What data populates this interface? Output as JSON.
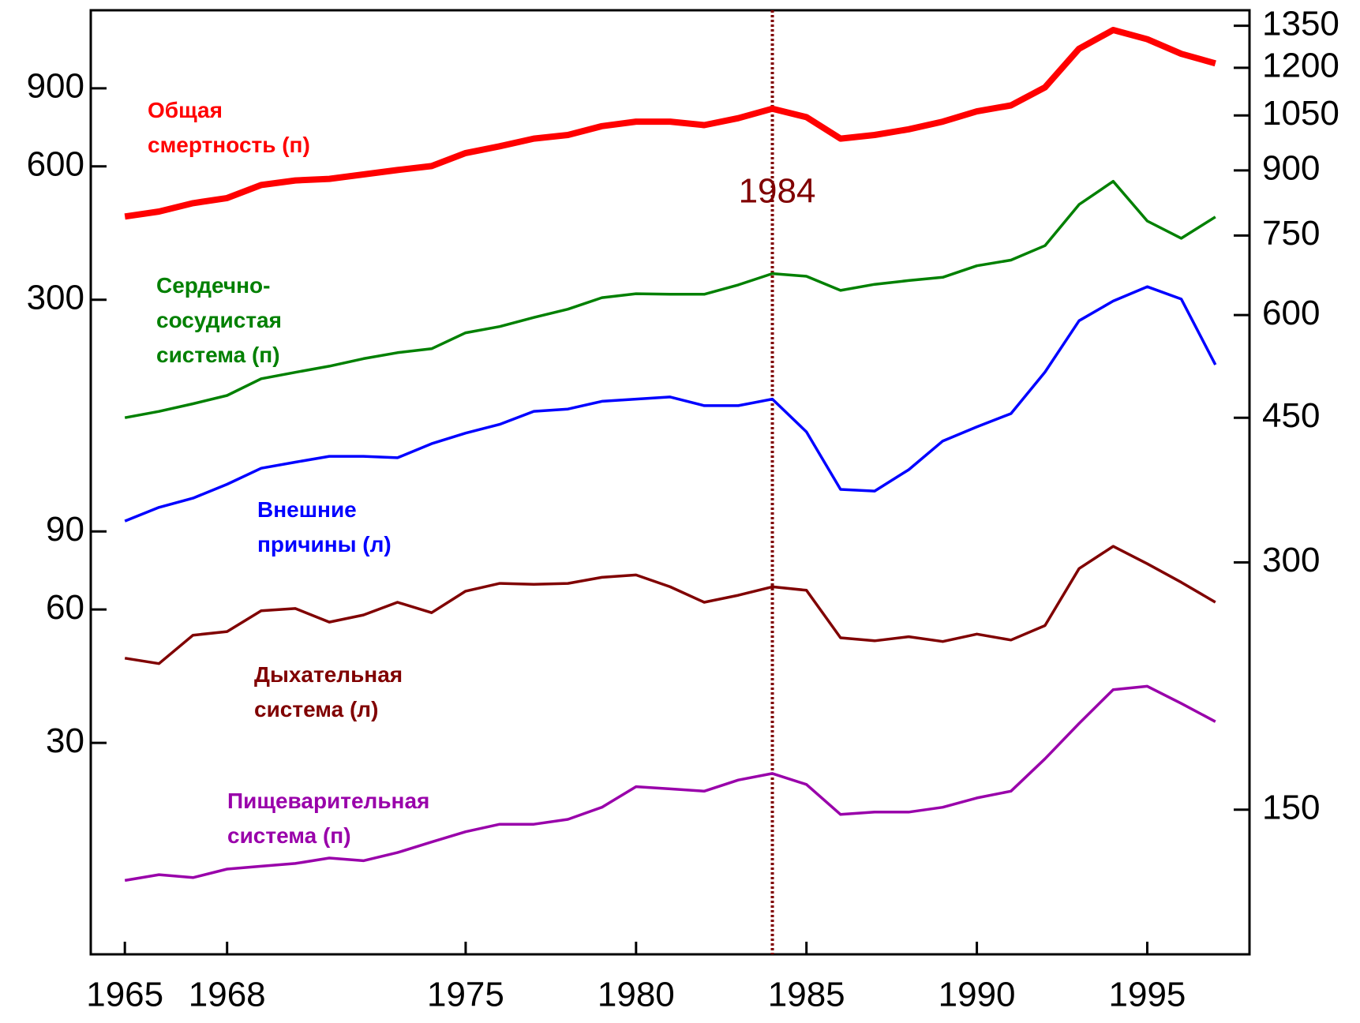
{
  "chart_data": {
    "type": "line",
    "x": [
      1965,
      1966,
      1967,
      1968,
      1969,
      1970,
      1971,
      1972,
      1973,
      1974,
      1975,
      1976,
      1977,
      1978,
      1979,
      1980,
      1981,
      1982,
      1983,
      1984,
      1985,
      1986,
      1987,
      1988,
      1989,
      1990,
      1991,
      1992,
      1993,
      1994,
      1995,
      1996,
      1997
    ],
    "xlim": [
      1964,
      1998
    ],
    "xticks": [
      1965,
      1968,
      1975,
      1980,
      1985,
      1990,
      1995
    ],
    "ylim": [
      10,
      1350
    ],
    "yticks": [
      30,
      60,
      90,
      300,
      600,
      900
    ],
    "y2lim": [
      100,
      1410
    ],
    "y2ticks": [
      150,
      300,
      450,
      600,
      750,
      900,
      1050,
      1200,
      1350
    ],
    "log_scale": true,
    "series": [
      {
        "name": "Общая смертность (п)",
        "color": "#ff0000",
        "axis": "y2",
        "values": [
          791,
          802,
          821,
          833,
          864,
          875,
          879,
          890,
          901,
          911,
          945,
          963,
          984,
          994,
          1019,
          1032,
          1032,
          1022,
          1042,
          1070,
          1045,
          984,
          994,
          1010,
          1032,
          1062,
          1080,
          1136,
          1266,
          1334,
          1300,
          1248,
          1215
        ]
      },
      {
        "name": "Сердечно-сосудистая система (п)",
        "color": "#008000",
        "axis": "y2",
        "values": [
          450,
          458,
          468,
          479,
          502,
          511,
          520,
          531,
          540,
          546,
          571,
          581,
          596,
          610,
          630,
          637,
          636,
          636,
          653,
          674,
          669,
          643,
          654,
          661,
          667,
          689,
          700,
          729,
          818,
          873,
          781,
          744,
          790
        ]
      },
      {
        "name": "Внешние причины (л)",
        "color": "#0000ff",
        "values": [
          95,
          102,
          107,
          115,
          125,
          129,
          133,
          133,
          132,
          142,
          150,
          157,
          168,
          170,
          177,
          179,
          181,
          173,
          173,
          179,
          151,
          112,
          111,
          124,
          144,
          155,
          166,
          206,
          269,
          298,
          321,
          301,
          214
        ]
      },
      {
        "name": "Дыхательная система (л)",
        "color": "#800000",
        "values": [
          46.6,
          45.3,
          52.5,
          53.5,
          59.6,
          60.3,
          56.2,
          58.3,
          62.3,
          59.0,
          66.0,
          68.7,
          68.4,
          68.7,
          70.9,
          71.8,
          67.5,
          62.3,
          64.6,
          67.5,
          66.3,
          51.8,
          51.0,
          52.1,
          50.8,
          52.8,
          51.2,
          55.2,
          74.2,
          83.3,
          76.1,
          69.1,
          62.3
        ]
      },
      {
        "name": "Пищеварительная система (п)",
        "color": "#9900aa",
        "axis": "y2",
        "values": [
          123,
          125,
          124,
          127,
          128,
          129,
          131,
          130,
          133,
          137,
          141,
          144,
          144,
          146,
          151,
          160,
          159,
          158,
          163,
          166,
          161,
          148,
          149,
          149,
          151,
          155,
          158,
          173,
          191,
          210,
          212,
          202,
          192
        ]
      }
    ],
    "annotations": [
      {
        "text": "1984",
        "x": 1984,
        "color": "#800000"
      }
    ]
  }
}
